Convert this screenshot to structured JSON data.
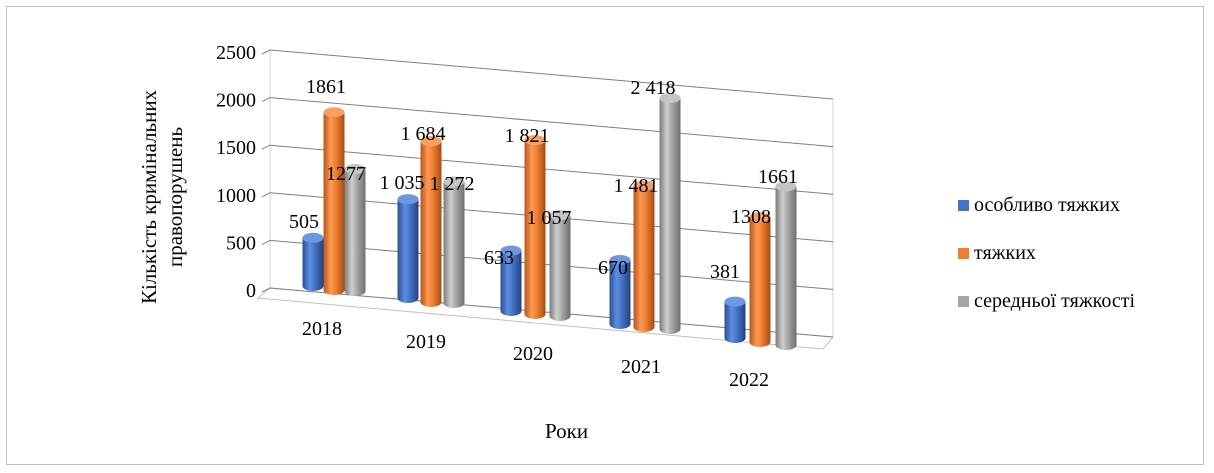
{
  "chart_data": {
    "type": "bar",
    "subtype": "3d-clustered-column",
    "title": "",
    "xlabel": "Роки",
    "ylabel_line1": "Кількість кримінальних",
    "ylabel_line2": "правопорушень",
    "ylim": [
      0,
      2500
    ],
    "yticks": [
      "2500",
      "2000",
      "1500",
      "1000",
      "500",
      "0"
    ],
    "grid": true,
    "legend_position": "right",
    "categories": [
      "2018",
      "2019",
      "2020",
      "2021",
      "2022"
    ],
    "series": [
      {
        "name": "особливо тяжких",
        "color": "#4472C4",
        "values": [
          505,
          1035,
          633,
          670,
          381
        ],
        "labels": [
          "505",
          "1 035",
          "633",
          "670",
          "381"
        ]
      },
      {
        "name": "тяжких",
        "color": "#ED7D31",
        "values": [
          1861,
          1684,
          1821,
          1481,
          1308
        ],
        "labels": [
          "1861",
          "1 684",
          "1 821",
          "1 481",
          "1308"
        ]
      },
      {
        "name": "середньої тяжкості",
        "color": "#A5A5A5",
        "values": [
          1277,
          1272,
          1057,
          2418,
          1661
        ],
        "labels": [
          "1277",
          "1 272",
          "1 057",
          "2 418",
          "1661"
        ]
      }
    ]
  }
}
